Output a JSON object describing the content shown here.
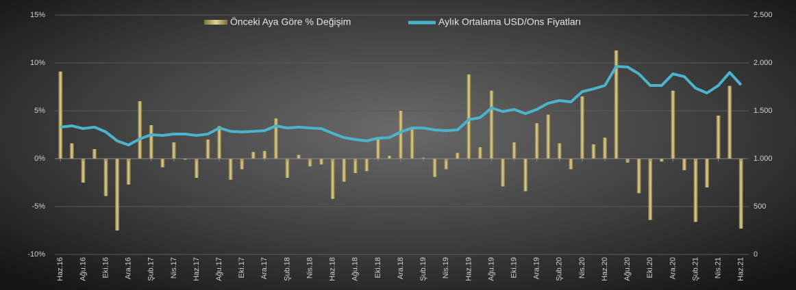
{
  "chart_data": {
    "type": "bar-line",
    "categories": [
      "Haz.16",
      null,
      "Ağu.16",
      null,
      "Eki.16",
      null,
      "Ara.16",
      null,
      "Şub.17",
      null,
      "Nis.17",
      null,
      "Haz.17",
      null,
      "Ağu.17",
      null,
      "Eki.17",
      null,
      "Ara.17",
      null,
      "Şub.18",
      null,
      "Nis.18",
      null,
      "Haz.18",
      null,
      "Ağu.18",
      null,
      "Eki.18",
      null,
      "Ara.18",
      null,
      "Şub.19",
      null,
      "Nis.19",
      null,
      "Haz.19",
      null,
      "Ağu.19",
      null,
      "Eki.19",
      null,
      "Ara.19",
      null,
      "Şub.20",
      null,
      "Nis.20",
      null,
      "Haz.20",
      null,
      "Ağu.20",
      null,
      "Eki.20",
      null,
      "Ara.20",
      null,
      "Şub.21",
      null,
      "Nis.21",
      null,
      "Haz.21"
    ],
    "series": [
      {
        "name": "Önceki Aya Göre % Değişim",
        "type": "bar",
        "color": "#b8a760",
        "axis": "y",
        "values": [
          9.1,
          1.6,
          -2.5,
          1.0,
          -3.9,
          -7.5,
          -2.7,
          6.0,
          3.5,
          -0.9,
          1.7,
          -0.1,
          -2.0,
          2.0,
          3.4,
          -2.2,
          -1.1,
          0.7,
          0.8,
          4.2,
          -2.0,
          0.4,
          -0.8,
          -0.6,
          -4.2,
          -2.4,
          -1.5,
          -1.3,
          2.0,
          0.3,
          5.0,
          3.3,
          0.1,
          -1.9,
          -1.1,
          0.6,
          8.8,
          1.2,
          7.1,
          -2.9,
          1.7,
          -3.4,
          3.7,
          4.6,
          1.6,
          -1.1,
          6.5,
          1.5,
          2.2,
          11.3,
          -0.4,
          -3.6,
          -6.4,
          -0.3,
          7.1,
          -1.2,
          -6.6,
          -3.0,
          4.5,
          7.6,
          -7.3
        ]
      },
      {
        "name": "Aylık Ortalama USD/Ons Fiyatları",
        "type": "line",
        "color": "#4bb3cc",
        "axis": "y2",
        "values": [
          1329,
          1343,
          1314,
          1329,
          1279,
          1186,
          1143,
          1207,
          1250,
          1243,
          1257,
          1257,
          1243,
          1257,
          1321,
          1286,
          1279,
          1286,
          1293,
          1343,
          1321,
          1329,
          1321,
          1314,
          1264,
          1221,
          1200,
          1186,
          1214,
          1221,
          1279,
          1321,
          1321,
          1300,
          1293,
          1300,
          1407,
          1429,
          1529,
          1493,
          1514,
          1471,
          1514,
          1579,
          1607,
          1593,
          1700,
          1729,
          1764,
          1964,
          1957,
          1886,
          1764,
          1764,
          1886,
          1857,
          1736,
          1686,
          1764,
          1900,
          1771
        ]
      }
    ],
    "ylim": [
      -10,
      15
    ],
    "yticks": [
      {
        "value": -10,
        "label": "-10%"
      },
      {
        "value": -5,
        "label": "-5%"
      },
      {
        "value": 0,
        "label": "0%"
      },
      {
        "value": 5,
        "label": "5%"
      },
      {
        "value": 10,
        "label": "10%"
      },
      {
        "value": 15,
        "label": "15%"
      }
    ],
    "y2lim": [
      0,
      2500
    ],
    "y2ticks": [
      0,
      500,
      {
        "value": 1000,
        "label": "1.000"
      },
      {
        "value": 1500,
        "label": "1.500"
      },
      {
        "value": 2000,
        "label": "2.000"
      },
      {
        "value": 2500,
        "label": "2.500"
      }
    ],
    "grid": true,
    "legend": "top"
  }
}
